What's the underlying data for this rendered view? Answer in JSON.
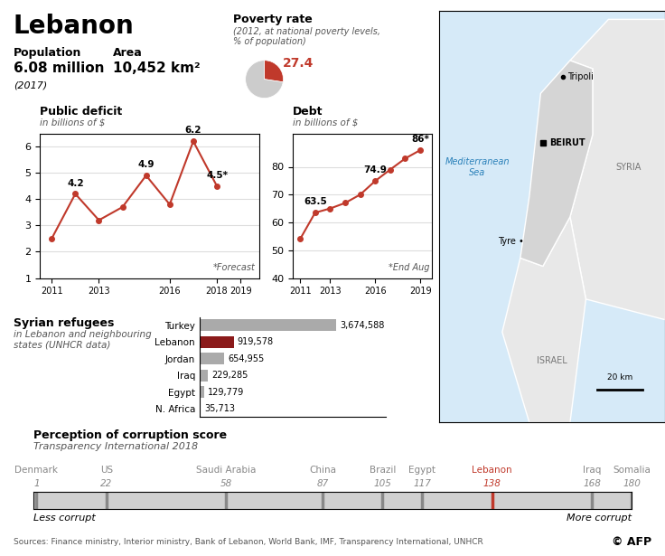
{
  "title": "Lebanon",
  "annotations": [
    "Population",
    "6.08 million",
    "(2017)",
    "Area",
    "10,452 km²",
    "Sources: Finance ministry, Interior ministry, Bank of Lebanon, World Bank, IMF, Transparency International, UNHCR",
    "© AFP"
  ],
  "chart_data": [
    {
      "type": "pie",
      "title": "Poverty rate",
      "subtitle": "(2012, at national poverty levels,\n% of population)",
      "categories": [
        null,
        null
      ],
      "values": [
        27.4,
        72.6
      ],
      "value_labels": [
        "27.4",
        null
      ],
      "colors": [
        "#c0392b",
        "#cccccc"
      ]
    },
    {
      "type": "line",
      "title": "Public deficit",
      "subtitle": "in billions of $",
      "x": [
        2011,
        2012,
        2013,
        2014,
        2015,
        2016,
        2017,
        2018,
        2019
      ],
      "values": [
        2.5,
        4.2,
        3.2,
        3.7,
        4.9,
        3.8,
        6.2,
        4.5,
        null
      ],
      "data_labels": true,
      "value_labels": [
        null,
        "4.2",
        null,
        null,
        "4.9",
        null,
        "6.2",
        "4.5*",
        null
      ],
      "color": "#c0392b",
      "marker": "o",
      "xlim": [
        2010.5,
        2019.8
      ],
      "xticks": [
        2011,
        2013,
        2016,
        2018,
        2019
      ],
      "ylim": [
        1,
        6.5
      ],
      "yticks": [
        1,
        2,
        3,
        4,
        5,
        6
      ],
      "grid": true,
      "annotations": [
        "*Forecast"
      ]
    },
    {
      "type": "line",
      "title": "Debt",
      "subtitle": "in billions of $",
      "x": [
        2011,
        2012,
        2013,
        2014,
        2015,
        2016,
        2017,
        2018,
        2019
      ],
      "values": [
        54,
        63.5,
        65,
        67,
        70,
        74.9,
        79,
        83,
        86
      ],
      "data_labels": true,
      "value_labels": [
        null,
        "63.5",
        null,
        null,
        null,
        "74.9",
        null,
        null,
        "86*"
      ],
      "color": "#c0392b",
      "marker": "o",
      "xlim": [
        2010.5,
        2019.8
      ],
      "xticks": [
        2011,
        2013,
        2016,
        2019
      ],
      "ylim": [
        40,
        92
      ],
      "yticks": [
        40,
        50,
        60,
        70,
        80
      ],
      "grid": true,
      "annotations": [
        "*End Aug"
      ]
    },
    {
      "type": "map",
      "annotations": [
        "Mediterranean\nSea",
        "SYRIA",
        "ISRAEL",
        "BEIRUT",
        "Tripoli",
        "Tyre •",
        "20 km"
      ]
    },
    {
      "type": "bar",
      "orientation": "horizontal",
      "title": "Syrian refugees",
      "subtitle": "in Lebanon and neighbouring\nstates (UNHCR data)",
      "categories": [
        "Turkey",
        "Lebanon",
        "Jordan",
        "Iraq",
        "Egypt",
        "N. Africa"
      ],
      "values": [
        3674588,
        919578,
        654955,
        229285,
        129779,
        35713
      ],
      "value_labels": [
        "3,674,588",
        "919,578",
        "654,955",
        "229,285",
        "129,779",
        "35,713"
      ],
      "data_labels": true,
      "colors": [
        "#aaaaaa",
        "#8b1a1a",
        "#aaaaaa",
        "#aaaaaa",
        "#aaaaaa",
        "#aaaaaa"
      ],
      "xlim": [
        0,
        5000000
      ],
      "tick_labels": "y"
    },
    {
      "type": "strip",
      "title": "Perception of corruption score",
      "subtitle": "Transparency International 2018",
      "categories": [
        "Denmark",
        "US",
        "Saudi Arabia",
        "China",
        "Brazil",
        "Egypt",
        "Lebanon",
        "Iraq",
        "Somalia"
      ],
      "values": [
        1,
        22,
        58,
        87,
        105,
        117,
        138,
        168,
        180
      ],
      "colors": [
        "#888888",
        "#888888",
        "#888888",
        "#888888",
        "#888888",
        "#888888",
        "#c0392b",
        "#888888",
        "#888888"
      ],
      "data_labels": true,
      "tick_labels": false,
      "xlim": [
        0,
        180
      ],
      "annotations": [
        "Less corrupt",
        "More corrupt"
      ]
    }
  ]
}
